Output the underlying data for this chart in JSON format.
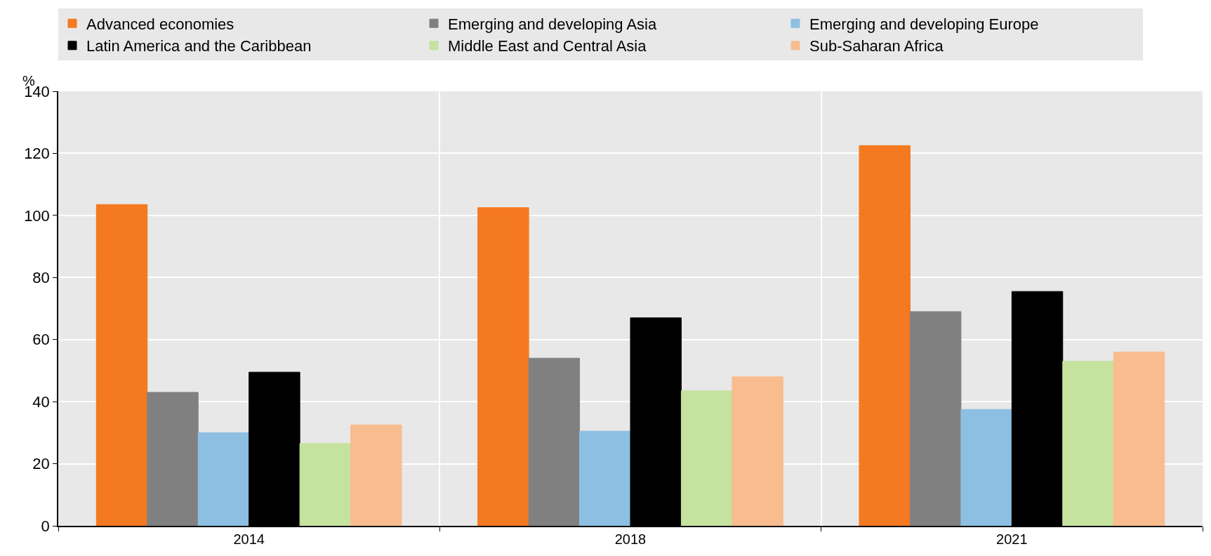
{
  "chart_data": {
    "type": "bar",
    "categories": [
      "2014",
      "2018",
      "2021"
    ],
    "ylabel": "%",
    "ylim": [
      0,
      140
    ],
    "yticks": [
      0,
      20,
      40,
      60,
      80,
      100,
      120,
      140
    ],
    "grid": true,
    "legend": "top",
    "series": [
      {
        "name": "Advanced economies",
        "color": "#f47920",
        "values": [
          103.5,
          102.5,
          122.5
        ]
      },
      {
        "name": "Emerging and developing Asia",
        "color": "#808080",
        "values": [
          43,
          54,
          69
        ]
      },
      {
        "name": "Emerging and developing Europe",
        "color": "#8dbfe2",
        "values": [
          30,
          30.5,
          37.5
        ]
      },
      {
        "name": "Latin America and the Caribbean",
        "color": "#000000",
        "values": [
          49.5,
          67,
          75.5
        ]
      },
      {
        "name": "Middle East and Central Asia",
        "color": "#c5e29f",
        "values": [
          26.5,
          43.5,
          53
        ]
      },
      {
        "name": "Sub-Saharan Africa",
        "color": "#f9bc8f",
        "values": [
          32.5,
          48,
          56
        ]
      }
    ]
  }
}
